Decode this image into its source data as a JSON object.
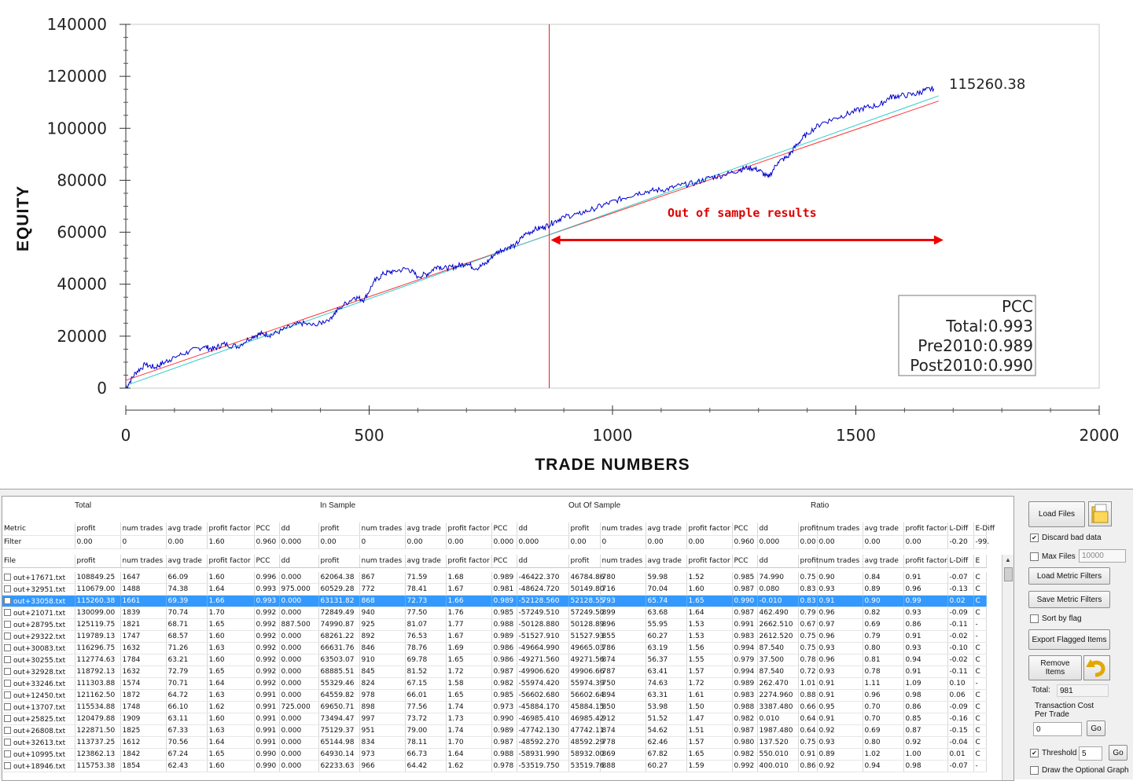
{
  "chart_data": {
    "type": "line",
    "xlabel": "TRADE NUMBERS",
    "ylabel": "EQUITY",
    "xlim": [
      0,
      2000
    ],
    "ylim": [
      0,
      140000
    ],
    "x_ticks": [
      "0",
      "500",
      "1000",
      "1500",
      "2000"
    ],
    "y_ticks": [
      "0",
      "20000",
      "40000",
      "60000",
      "80000",
      "100000",
      "120000",
      "140000"
    ],
    "annotation": "Out of sample results",
    "end_value_label": "115260.38",
    "split_x": 870,
    "arrow_range": [
      870,
      1680
    ],
    "arrow_y": 57000,
    "series": [
      {
        "values_x": [
          0,
          20,
          40,
          60,
          80,
          100,
          130,
          160,
          180,
          200,
          230,
          260,
          280,
          300,
          330,
          360,
          390,
          420,
          440,
          470,
          490,
          510,
          530,
          550,
          580,
          600,
          620,
          640,
          660,
          680,
          700,
          720,
          740,
          760,
          780,
          800,
          820,
          840,
          860,
          880,
          900,
          930,
          960,
          990,
          1020,
          1050,
          1080,
          1110,
          1140,
          1170,
          1200,
          1230,
          1260,
          1280,
          1300,
          1320,
          1340,
          1360,
          1380,
          1400,
          1430,
          1460,
          1490,
          1520,
          1550,
          1570,
          1590,
          1620,
          1640,
          1660
        ],
        "values_y": [
          0,
          6000,
          9000,
          8000,
          10000,
          12000,
          14000,
          16000,
          15000,
          17000,
          16000,
          20000,
          21000,
          20500,
          23000,
          25000,
          24000,
          27000,
          31000,
          35000,
          34000,
          41000,
          44000,
          45000,
          46000,
          43000,
          44000,
          47000,
          46000,
          47000,
          48000,
          46000,
          48000,
          52000,
          54000,
          55000,
          59000,
          61000,
          62000,
          64000,
          66000,
          67000,
          69000,
          71000,
          73000,
          75000,
          76000,
          76500,
          78000,
          79000,
          81000,
          82000,
          84000,
          85000,
          84000,
          81000,
          87000,
          89000,
          94000,
          98000,
          102000,
          104000,
          106000,
          108000,
          109000,
          112000,
          112500,
          113000,
          114500,
          115260
        ]
      },
      {
        "values_x": [
          0,
          1670
        ],
        "values_y": [
          3000,
          110500
        ]
      },
      {
        "values_x": [
          0,
          1670
        ],
        "values_y": [
          1000,
          112500
        ]
      }
    ],
    "colors": {
      "equity": "#0000cc",
      "fit_red": "#ff3333",
      "fit_cyan": "#33cccc",
      "split": "#dd2222"
    },
    "pcc_box": {
      "title": "PCC",
      "total": "Total:0.993",
      "pre": "Pre2010:0.989",
      "post": "Post2010:0.990"
    }
  },
  "table": {
    "groups": {
      "total": "Total",
      "in_sample": "In Sample",
      "out_sample": "Out Of Sample",
      "ratio": "Ratio"
    },
    "metric_row": [
      "Metric",
      "profit",
      "num trades",
      "avg trade",
      "profit factor",
      "PCC",
      "dd",
      "profit",
      "num trades",
      "avg trade",
      "profit factor",
      "PCC",
      "dd",
      "profit",
      "num trades",
      "avg trade",
      "profit factor",
      "PCC",
      "dd",
      "profit",
      "num trades",
      "avg trade",
      "profit factor",
      "L-Diff",
      "E-Diff"
    ],
    "filter_row": [
      "Filter",
      "0.00",
      "0",
      "0.00",
      "1.60",
      "0.960",
      "0.000",
      "0.00",
      "0",
      "0.00",
      "0.00",
      "0.000",
      "0.000",
      "0.00",
      "0",
      "0.00",
      "0.00",
      "0.960",
      "0.000",
      "0.00",
      "0.00",
      "0.00",
      "0.00",
      "-0.20",
      "-99."
    ],
    "columns": [
      "File",
      "profit",
      "num trades",
      "avg trade",
      "profit factor",
      "PCC",
      "dd",
      "profit",
      "num trades",
      "avg trade",
      "profit factor",
      "PCC",
      "dd",
      "profit",
      "num trades",
      "avg trade",
      "profit factor",
      "PCC",
      "dd",
      "profit",
      "num trades",
      "avg trade",
      "profit factor",
      "L-Diff",
      "E"
    ],
    "selected_index": 2,
    "rows": [
      [
        "out+17671.txt",
        "108849.25",
        "1647",
        "66.09",
        "1.60",
        "0.996",
        "0.000",
        "62064.38",
        "867",
        "71.59",
        "1.68",
        "0.989",
        "-46422.370",
        "46784.86",
        "780",
        "59.98",
        "1.52",
        "0.985",
        "74.990",
        "0.75",
        "0.90",
        "0.84",
        "0.91",
        "-0.07",
        "C"
      ],
      [
        "out+32951.txt",
        "110679.00",
        "1488",
        "74.38",
        "1.64",
        "0.993",
        "975.000",
        "60529.28",
        "772",
        "78.41",
        "1.67",
        "0.981",
        "-48624.720",
        "50149.80",
        "716",
        "70.04",
        "1.60",
        "0.987",
        "0.080",
        "0.83",
        "0.93",
        "0.89",
        "0.96",
        "-0.13",
        "C"
      ],
      [
        "out+33058.txt",
        "115260.38",
        "1661",
        "69.39",
        "1.66",
        "0.993",
        "0.000",
        "63131.82",
        "868",
        "72.73",
        "1.66",
        "0.989",
        "-52128.560",
        "52128.55",
        "793",
        "65.74",
        "1.65",
        "0.990",
        "-0.010",
        "0.83",
        "0.91",
        "0.90",
        "0.99",
        "0.02",
        "C"
      ],
      [
        "out+21071.txt",
        "130099.00",
        "1839",
        "70.74",
        "1.70",
        "0.992",
        "0.000",
        "72849.49",
        "940",
        "77.50",
        "1.76",
        "0.985",
        "-57249.510",
        "57249.50",
        "899",
        "63.68",
        "1.64",
        "0.987",
        "462.490",
        "0.79",
        "0.96",
        "0.82",
        "0.93",
        "-0.09",
        "C"
      ],
      [
        "out+28795.txt",
        "125119.75",
        "1821",
        "68.71",
        "1.65",
        "0.992",
        "887.500",
        "74990.87",
        "925",
        "81.07",
        "1.77",
        "0.988",
        "-50128.880",
        "50128.89",
        "896",
        "55.95",
        "1.53",
        "0.991",
        "2662.510",
        "0.67",
        "0.97",
        "0.69",
        "0.86",
        "-0.11",
        "-"
      ],
      [
        "out+29322.txt",
        "119789.13",
        "1747",
        "68.57",
        "1.60",
        "0.992",
        "0.000",
        "68261.22",
        "892",
        "76.53",
        "1.67",
        "0.989",
        "-51527.910",
        "51527.93",
        "855",
        "60.27",
        "1.53",
        "0.983",
        "2612.520",
        "0.75",
        "0.96",
        "0.79",
        "0.91",
        "-0.02",
        "-"
      ],
      [
        "out+30083.txt",
        "116296.75",
        "1632",
        "71.26",
        "1.63",
        "0.992",
        "0.000",
        "66631.76",
        "846",
        "78.76",
        "1.69",
        "0.986",
        "-49664.990",
        "49665.03",
        "786",
        "63.19",
        "1.56",
        "0.994",
        "87.540",
        "0.75",
        "0.93",
        "0.80",
        "0.93",
        "-0.10",
        "C"
      ],
      [
        "out+30255.txt",
        "112774.63",
        "1784",
        "63.21",
        "1.60",
        "0.992",
        "0.000",
        "63503.07",
        "910",
        "69.78",
        "1.65",
        "0.986",
        "-49271.560",
        "49271.56",
        "874",
        "56.37",
        "1.55",
        "0.979",
        "37.500",
        "0.78",
        "0.96",
        "0.81",
        "0.94",
        "-0.02",
        "C"
      ],
      [
        "out+32928.txt",
        "118792.13",
        "1632",
        "72.79",
        "1.65",
        "0.992",
        "0.000",
        "68885.51",
        "845",
        "81.52",
        "1.72",
        "0.987",
        "-49906.620",
        "49906.66",
        "787",
        "63.41",
        "1.57",
        "0.994",
        "87.540",
        "0.72",
        "0.93",
        "0.78",
        "0.91",
        "-0.11",
        "C"
      ],
      [
        "out+33246.txt",
        "111303.88",
        "1574",
        "70.71",
        "1.64",
        "0.992",
        "0.000",
        "55329.46",
        "824",
        "67.15",
        "1.58",
        "0.982",
        "-55974.420",
        "55974.39",
        "750",
        "74.63",
        "1.72",
        "0.989",
        "262.470",
        "1.01",
        "0.91",
        "1.11",
        "1.09",
        "0.10",
        "-"
      ],
      [
        "out+12450.txt",
        "121162.50",
        "1872",
        "64.72",
        "1.63",
        "0.991",
        "0.000",
        "64559.82",
        "978",
        "66.01",
        "1.65",
        "0.985",
        "-56602.680",
        "56602.64",
        "894",
        "63.31",
        "1.61",
        "0.983",
        "2274.960",
        "0.88",
        "0.91",
        "0.96",
        "0.98",
        "0.06",
        "C"
      ],
      [
        "out+13707.txt",
        "115534.88",
        "1748",
        "66.10",
        "1.62",
        "0.991",
        "725.000",
        "69650.71",
        "898",
        "77.56",
        "1.74",
        "0.973",
        "-45884.170",
        "45884.15",
        "850",
        "53.98",
        "1.50",
        "0.988",
        "3387.480",
        "0.66",
        "0.95",
        "0.70",
        "0.86",
        "-0.09",
        "C"
      ],
      [
        "out+25825.txt",
        "120479.88",
        "1909",
        "63.11",
        "1.60",
        "0.991",
        "0.000",
        "73494.47",
        "997",
        "73.72",
        "1.73",
        "0.990",
        "-46985.410",
        "46985.42",
        "912",
        "51.52",
        "1.47",
        "0.982",
        "0.010",
        "0.64",
        "0.91",
        "0.70",
        "0.85",
        "-0.16",
        "C"
      ],
      [
        "out+26808.txt",
        "122871.50",
        "1825",
        "67.33",
        "1.63",
        "0.991",
        "0.000",
        "75129.37",
        "951",
        "79.00",
        "1.74",
        "0.989",
        "-47742.130",
        "47742.11",
        "874",
        "54.62",
        "1.51",
        "0.987",
        "1987.480",
        "0.64",
        "0.92",
        "0.69",
        "0.87",
        "-0.15",
        "C"
      ],
      [
        "out+32613.txt",
        "113737.25",
        "1612",
        "70.56",
        "1.64",
        "0.991",
        "0.000",
        "65144.98",
        "834",
        "78.11",
        "1.70",
        "0.987",
        "-48592.270",
        "48592.29",
        "778",
        "62.46",
        "1.57",
        "0.980",
        "137.520",
        "0.75",
        "0.93",
        "0.80",
        "0.92",
        "-0.04",
        "C"
      ],
      [
        "out+10995.txt",
        "123862.13",
        "1842",
        "67.24",
        "1.65",
        "0.990",
        "0.000",
        "64930.14",
        "973",
        "66.73",
        "1.64",
        "0.988",
        "-58931.990",
        "58932.00",
        "869",
        "67.82",
        "1.65",
        "0.982",
        "550.010",
        "0.91",
        "0.89",
        "1.02",
        "1.00",
        "0.01",
        "C"
      ],
      [
        "out+18946.txt",
        "115753.38",
        "1854",
        "62.43",
        "1.60",
        "0.990",
        "0.000",
        "62233.63",
        "966",
        "64.42",
        "1.62",
        "0.978",
        "-53519.750",
        "53519.76",
        "888",
        "60.27",
        "1.59",
        "0.992",
        "400.010",
        "0.86",
        "0.92",
        "0.94",
        "0.98",
        "-0.07",
        "-"
      ]
    ]
  },
  "sidebar": {
    "load_files": "Load Files",
    "discard_bad_data": "Discard bad data",
    "max_files_label": "Max Files",
    "max_files_value": "10000",
    "load_metric_filters": "Load Metric Filters",
    "save_metric_filters": "Save Metric Filters",
    "sort_by_flag": "Sort by flag",
    "export_flagged": "Export Flagged Items",
    "remove_items": "Remove Items",
    "total_label": "Total:",
    "total_value": "981",
    "transaction_cost_label": "Transaction Cost Per Trade",
    "transaction_cost_value": "0",
    "go_label": "Go",
    "threshold_label": "Threshold",
    "threshold_value": "5",
    "draw_optional_graph": "Draw the Optional Graph"
  }
}
